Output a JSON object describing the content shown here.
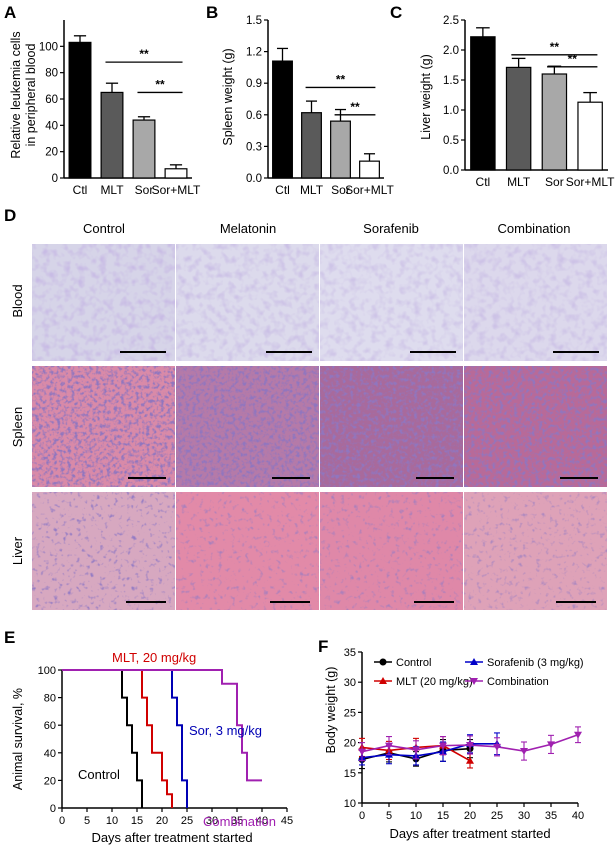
{
  "panels": {
    "A": {
      "letter": "A",
      "type": "bar",
      "ylabel_line1": "Relative leukemia cells",
      "ylabel_line2": "in peripheral blood",
      "categories": [
        "Ctl",
        "MLT",
        "Sor",
        "Sor+MLT"
      ],
      "values": [
        103,
        65,
        44,
        7
      ],
      "errors": [
        5,
        7,
        2.5,
        3
      ],
      "fills": [
        "#000000",
        "#5a5a5a",
        "#a8a8a8",
        "#ffffff"
      ],
      "ylim": [
        0,
        120
      ],
      "yticks": [
        0,
        20,
        40,
        60,
        80,
        100
      ],
      "brackets": [
        {
          "from": 1,
          "to": 3,
          "y": 88,
          "label": "**"
        },
        {
          "from": 2,
          "to": 3,
          "y": 65,
          "label": "**"
        }
      ]
    },
    "B": {
      "letter": "B",
      "type": "bar",
      "ylabel": "Spleen weight (g)",
      "categories": [
        "Ctl",
        "MLT",
        "Sor",
        "Sor+MLT"
      ],
      "values": [
        1.11,
        0.62,
        0.54,
        0.16
      ],
      "errors": [
        0.12,
        0.11,
        0.11,
        0.07
      ],
      "fills": [
        "#000000",
        "#5a5a5a",
        "#a8a8a8",
        "#ffffff"
      ],
      "ylim": [
        0,
        1.5
      ],
      "yticks": [
        "0.0",
        "0.3",
        "0.6",
        "0.9",
        "1.2",
        "1.5"
      ],
      "brackets": [
        {
          "from": 1,
          "to": 3,
          "y": 0.86,
          "label": "**"
        },
        {
          "from": 2,
          "to": 3,
          "y": 0.6,
          "label": "**"
        }
      ]
    },
    "C": {
      "letter": "C",
      "type": "bar",
      "ylabel": "Liver weight (g)",
      "categories": [
        "Ctl",
        "MLT",
        "Sor",
        "Sor+MLT"
      ],
      "values": [
        2.22,
        1.71,
        1.6,
        1.13
      ],
      "errors": [
        0.15,
        0.15,
        0.13,
        0.16
      ],
      "fills": [
        "#000000",
        "#5a5a5a",
        "#a8a8a8",
        "#ffffff"
      ],
      "ylim": [
        0,
        2.5
      ],
      "yticks": [
        "0.0",
        "0.5",
        "1.0",
        "1.5",
        "2.0",
        "2.5"
      ],
      "brackets": [
        {
          "from": 1,
          "to": 3,
          "y": 1.92,
          "label": "**"
        },
        {
          "from": 2,
          "to": 3,
          "y": 1.72,
          "label": "**"
        }
      ]
    },
    "D": {
      "letter": "D",
      "columns": [
        "Control",
        "Melatonin",
        "Sorafenib",
        "Combination"
      ],
      "rows": [
        "Blood",
        "Spleen",
        "Liver"
      ]
    },
    "E": {
      "letter": "E",
      "type": "line",
      "ylabel": "Animal survival, %",
      "xlabel": "Days after treatment started",
      "xlim": [
        0,
        45
      ],
      "ylim": [
        0,
        100
      ],
      "xticks": [
        0,
        5,
        10,
        15,
        20,
        25,
        30,
        35,
        40,
        45
      ],
      "yticks": [
        0,
        20,
        40,
        60,
        80,
        100
      ],
      "series": [
        {
          "name": "Control",
          "color": "#000000",
          "x": [
            0,
            12,
            12,
            13,
            13,
            14,
            14,
            15,
            15,
            16,
            16
          ],
          "y": [
            100,
            100,
            80,
            80,
            60,
            60,
            40,
            40,
            20,
            20,
            0
          ]
        },
        {
          "name": "MLT, 20 mg/kg",
          "color": "#d00000",
          "x": [
            0,
            16,
            16,
            17,
            17,
            18,
            18,
            20,
            20,
            21,
            21,
            22,
            22
          ],
          "y": [
            100,
            100,
            80,
            80,
            60,
            60,
            40,
            40,
            20,
            20,
            10,
            10,
            0
          ]
        },
        {
          "name": "Sor,  3 mg/kg",
          "color": "#0000b4",
          "x": [
            0,
            22,
            22,
            23,
            23,
            24,
            24,
            25,
            25
          ],
          "y": [
            100,
            100,
            80,
            80,
            60,
            60,
            20,
            20,
            0
          ]
        },
        {
          "name": "Combination",
          "color": "#a020b0",
          "x": [
            0,
            32,
            32,
            35,
            35,
            36,
            36,
            37,
            37,
            38,
            38,
            40
          ],
          "y": [
            100,
            100,
            90,
            90,
            60,
            60,
            40,
            40,
            20,
            20,
            20,
            20
          ]
        }
      ],
      "labels": {
        "control": "Control",
        "mlt": "MLT, 20 mg/kg",
        "sor": "Sor,  3 mg/kg",
        "combination": "Combination"
      }
    },
    "F": {
      "letter": "F",
      "type": "line",
      "ylabel": "Body weight (g)",
      "xlabel": "Days after treatment started",
      "xlim": [
        0,
        40
      ],
      "ylim": [
        10,
        35
      ],
      "xticks": [
        0,
        5,
        10,
        15,
        20,
        25,
        30,
        35,
        40
      ],
      "yticks": [
        10,
        15,
        20,
        25,
        30,
        35
      ],
      "series": [
        {
          "name": "Control",
          "color": "#000000",
          "marker": "circle",
          "x": [
            0,
            5,
            10,
            15,
            20
          ],
          "y": [
            17.2,
            18.3,
            17.3,
            18.7,
            19.0
          ],
          "err": [
            1.5,
            1.5,
            1.2,
            1.8,
            1.5
          ]
        },
        {
          "name": "MLT (20 mg/kg)",
          "color": "#d00000",
          "marker": "triangle-up",
          "x": [
            0,
            5,
            10,
            15,
            20
          ],
          "y": [
            19.2,
            18.7,
            19.2,
            19.5,
            17.0
          ],
          "err": [
            1.5,
            1.5,
            1.5,
            1.5,
            1.2
          ]
        },
        {
          "name": "Sorafenib (3 mg/kg)",
          "color": "#0000c8",
          "marker": "triangle-up",
          "x": [
            0,
            5,
            10,
            15,
            20,
            25
          ],
          "y": [
            17.5,
            18.0,
            17.8,
            18.5,
            19.8,
            19.8
          ],
          "err": [
            1.2,
            1.5,
            1.5,
            1.6,
            1.5,
            1.8
          ]
        },
        {
          "name": "Combination",
          "color": "#a020b0",
          "marker": "triangle-down",
          "x": [
            0,
            5,
            10,
            15,
            20,
            25,
            30,
            35,
            40
          ],
          "y": [
            18.5,
            19.5,
            18.8,
            19.5,
            19.6,
            19.3,
            18.6,
            19.7,
            21.3
          ],
          "err": [
            1.5,
            1.5,
            1.5,
            1.5,
            1.5,
            1.5,
            1.5,
            1.5,
            1.3
          ]
        }
      ],
      "legend": [
        "Control",
        "Sorafenib (3 mg/kg)",
        "MLT (20 mg/kg)",
        "Combination"
      ]
    }
  }
}
